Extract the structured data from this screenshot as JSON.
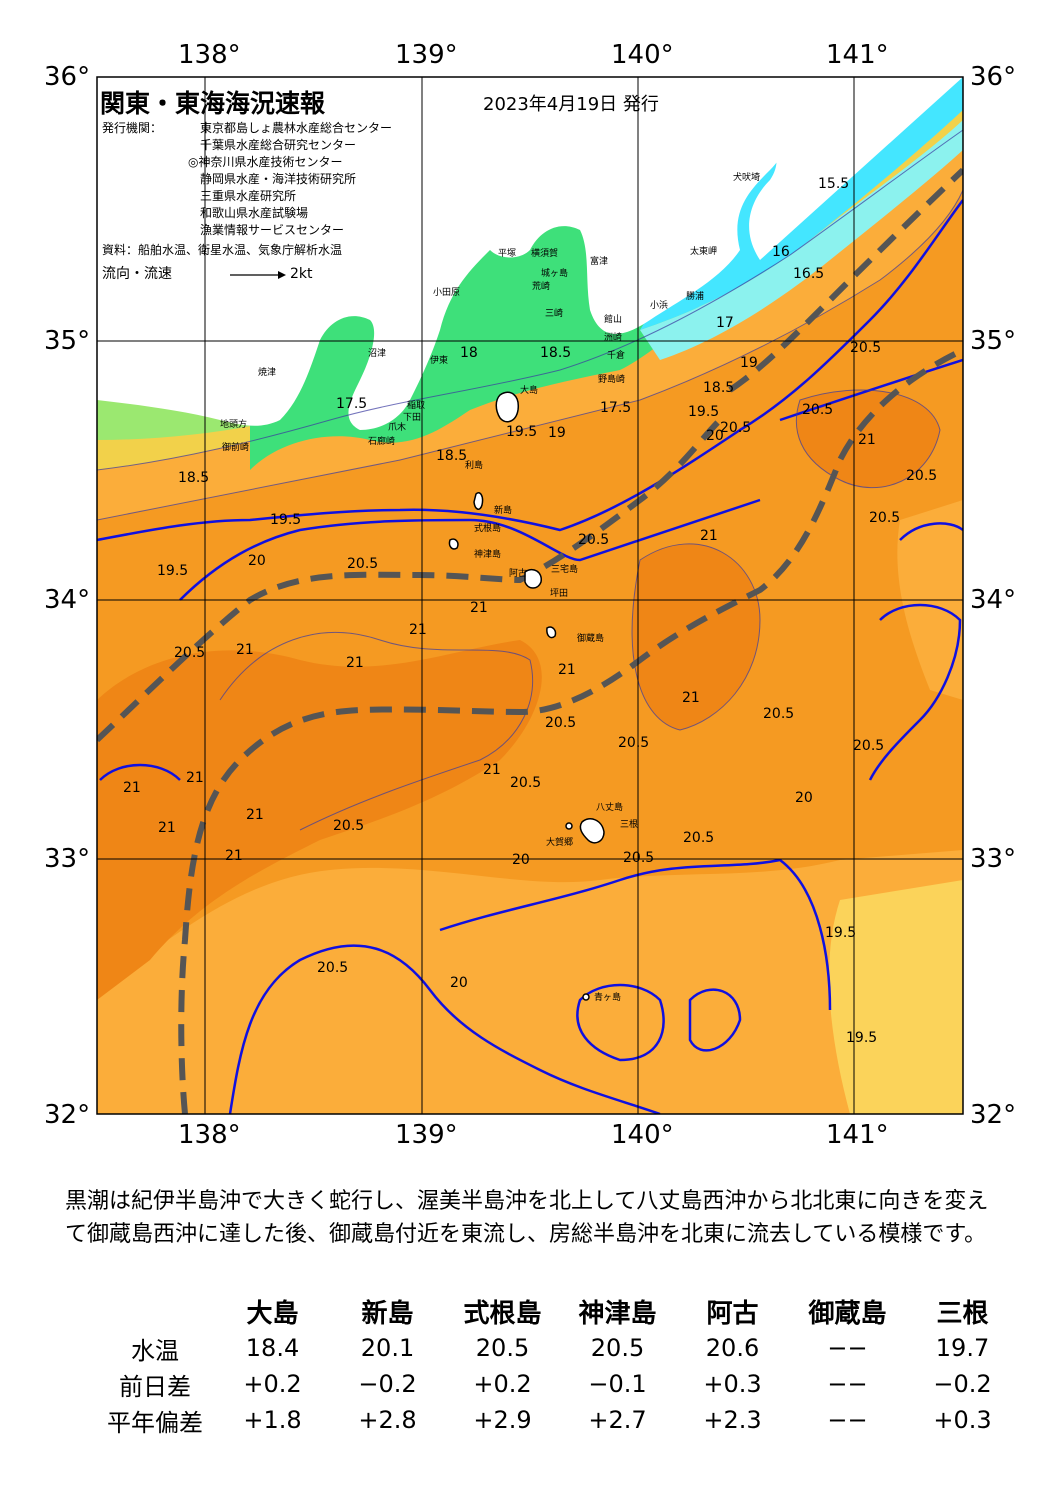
{
  "title": "関東・東海海況速報",
  "issue_date": "2023年4月19日 発行",
  "issuers_label": "発行機関：",
  "issuers": [
    "東京都島しょ農林水産総合センター",
    "千葉県水産総合研究センター",
    "◎神奈川県水産技術センター",
    "静岡県水産・海洋技術研究所",
    "三重県水産研究所",
    "和歌山県水産試験場",
    "漁業情報サービスセンター"
  ],
  "source": "資料：船舶水温、衛星水温、気象庁解析水温",
  "legend": {
    "label": "流向・流速",
    "scale": "2kt"
  },
  "axes": {
    "lon_labels": [
      "138°",
      "139°",
      "140°",
      "141°"
    ],
    "lat_labels": [
      "36°",
      "35°",
      "34°",
      "33°",
      "32°"
    ],
    "lon_range": [
      137.5,
      141.5
    ],
    "lat_range": [
      32.0,
      36.0
    ]
  },
  "place_names": [
    "犬吠埼",
    "太東岬",
    "小田原",
    "平塚",
    "横須賀",
    "城ヶ島",
    "荒崎",
    "富津",
    "三崎",
    "洲崎",
    "小浜",
    "勝浦",
    "館山",
    "千倉",
    "野島崎",
    "大島",
    "沼津",
    "伊東",
    "焼津",
    "稲取",
    "下田",
    "爪木",
    "御前崎",
    "地頭方",
    "石廊崎",
    "利島",
    "新島",
    "式根島",
    "神津島",
    "阿古",
    "三宅島",
    "坪田",
    "御蔵島",
    "八丈島",
    "三根",
    "大賀郷",
    "青ヶ島"
  ],
  "contour_labels": [
    "15.5",
    "16",
    "16.5",
    "17",
    "17.5",
    "18",
    "18.5",
    "19",
    "19.5",
    "20",
    "20.5",
    "21"
  ],
  "colors": {
    "temp_15": "#44e6ff",
    "temp_16": "#8cf2ee",
    "temp_17": "#3ee07a",
    "temp_18": "#9be870",
    "temp_19": "#f2d14a",
    "temp_19_5": "#fbad3a",
    "temp_20": "#f59a22",
    "temp_21": "#ee8a16",
    "isotherm": "#1010e0",
    "kuroshio_axis": "#555555"
  },
  "summary": "黒潮は紀伊半島沖で大きく蛇行し、渥美半島沖を北上して八丈島西沖から北北東に向きを変えて御蔵島西沖に達した後、御蔵島付近を東流し、房総半島沖を北東に流去している模様です。",
  "observations": {
    "stations": [
      "大島",
      "新島",
      "式根島",
      "神津島",
      "阿古",
      "御蔵島",
      "三根"
    ],
    "rows": [
      {
        "label": "水温",
        "values": [
          "18.4",
          "20.1",
          "20.5",
          "20.5",
          "20.6",
          "−−",
          "19.7"
        ]
      },
      {
        "label": "前日差",
        "values": [
          "+0.2",
          "−0.2",
          "+0.2",
          "−0.1",
          "+0.3",
          "−−",
          "−0.2"
        ]
      },
      {
        "label": "平年偏差",
        "values": [
          "+1.8",
          "+2.8",
          "+2.9",
          "+2.7",
          "+2.3",
          "−−",
          "+0.3"
        ]
      }
    ]
  }
}
